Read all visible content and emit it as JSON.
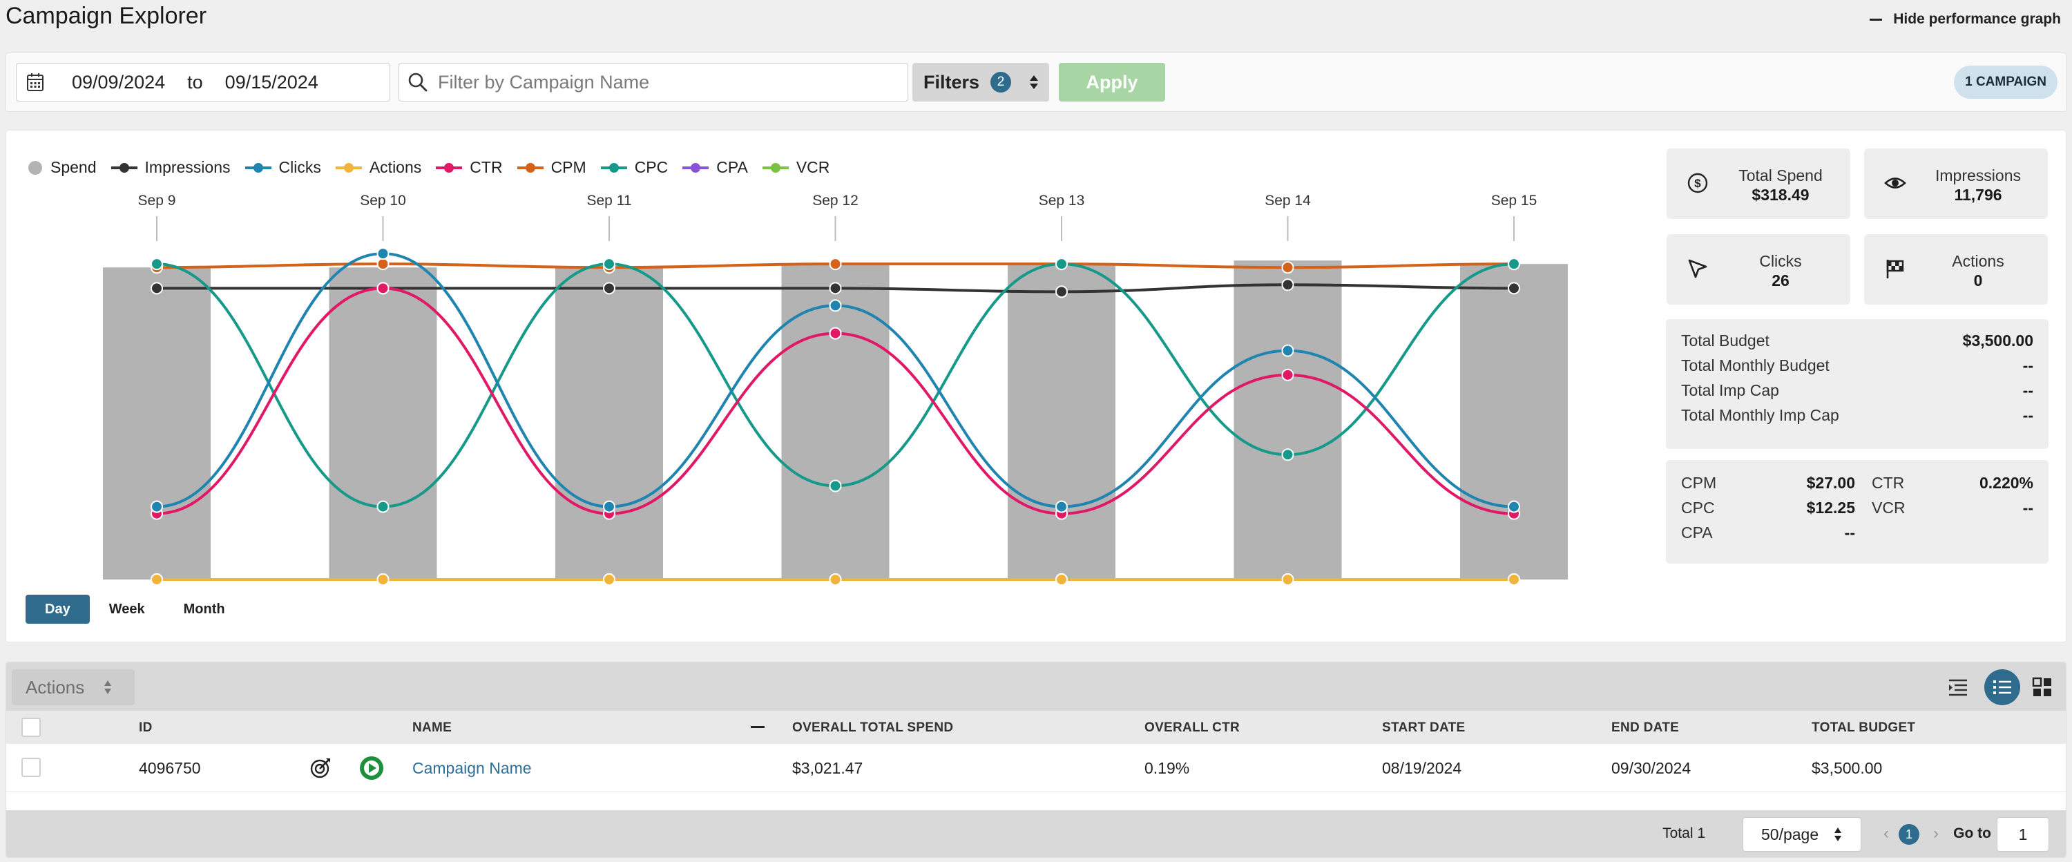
{
  "header": {
    "title": "Campaign Explorer",
    "hide_graph_label": "Hide performance graph"
  },
  "filter_bar": {
    "start_date": "09/09/2024",
    "to_label": "to",
    "end_date": "09/15/2024",
    "search_placeholder": "Filter by Campaign Name",
    "filters_label": "Filters",
    "filters_count": "2",
    "apply_label": "Apply",
    "campaign_count_label": "1 CAMPAIGN"
  },
  "chart_data": {
    "type": "line",
    "x": [
      "Sep 9",
      "Sep 10",
      "Sep 11",
      "Sep 12",
      "Sep 13",
      "Sep 14",
      "Sep 15"
    ],
    "y_normalized": true,
    "series": [
      {
        "name": "Spend",
        "render": "bar",
        "color": "#b3b3b3",
        "values": [
          0.9,
          0.9,
          0.9,
          0.91,
          0.91,
          0.92,
          0.91
        ]
      },
      {
        "name": "Impressions",
        "color": "#333333",
        "values": [
          0.84,
          0.84,
          0.84,
          0.84,
          0.83,
          0.85,
          0.84
        ]
      },
      {
        "name": "Clicks",
        "color": "#1f84b0",
        "values": [
          0.21,
          0.94,
          0.21,
          0.79,
          0.21,
          0.66,
          0.21
        ]
      },
      {
        "name": "Actions",
        "color": "#f0b43c",
        "values": [
          0,
          0,
          0,
          0,
          0,
          0,
          0
        ]
      },
      {
        "name": "CTR",
        "color": "#e01865",
        "values": [
          0.19,
          0.84,
          0.19,
          0.71,
          0.19,
          0.59,
          0.19
        ]
      },
      {
        "name": "CPM",
        "color": "#d4621a",
        "values": [
          0.9,
          0.91,
          0.9,
          0.91,
          0.91,
          0.9,
          0.91
        ]
      },
      {
        "name": "CPC",
        "color": "#17998a",
        "values": [
          0.91,
          0.21,
          0.91,
          0.27,
          0.91,
          0.36,
          0.91
        ]
      },
      {
        "name": "CPA",
        "color": "#8a52d8",
        "values": [
          0,
          0,
          0,
          0,
          0,
          0,
          0
        ]
      },
      {
        "name": "VCR",
        "color": "#7cc242",
        "values": [
          0,
          0,
          0,
          0,
          0,
          0,
          0
        ]
      }
    ],
    "grid": false,
    "legend_position": "top-left"
  },
  "range_tabs": [
    {
      "label": "Day",
      "active": true
    },
    {
      "label": "Week",
      "active": false
    },
    {
      "label": "Month",
      "active": false
    }
  ],
  "kpis": {
    "total_spend": {
      "label": "Total Spend",
      "value": "$318.49",
      "icon": "dollar-icon"
    },
    "impressions": {
      "label": "Impressions",
      "value": "11,796",
      "icon": "eye-icon"
    },
    "clicks": {
      "label": "Clicks",
      "value": "26",
      "icon": "cursor-icon"
    },
    "actions": {
      "label": "Actions",
      "value": "0",
      "icon": "flag-icon"
    }
  },
  "budget": [
    {
      "label": "Total Budget",
      "value": "$3,500.00"
    },
    {
      "label": "Total Monthly Budget",
      "value": "--"
    },
    {
      "label": "Total Imp Cap",
      "value": "--"
    },
    {
      "label": "Total Monthly Imp Cap",
      "value": "--"
    }
  ],
  "metrics": {
    "cpm": {
      "label": "CPM",
      "value": "$27.00"
    },
    "cpc": {
      "label": "CPC",
      "value": "$12.25"
    },
    "cpa": {
      "label": "CPA",
      "value": "--"
    },
    "ctr": {
      "label": "CTR",
      "value": "0.220%"
    },
    "vcr": {
      "label": "VCR",
      "value": "--"
    }
  },
  "table": {
    "actions_label": "Actions",
    "columns": {
      "id": "ID",
      "name": "NAME",
      "spend": "OVERALL TOTAL SPEND",
      "ctr": "OVERALL CTR",
      "start": "START DATE",
      "end": "END DATE",
      "budget": "TOTAL BUDGET"
    },
    "rows": [
      {
        "id": "4096750",
        "name": "Campaign Name",
        "spend": "$3,021.47",
        "ctr": "0.19%",
        "start": "08/19/2024",
        "end": "09/30/2024",
        "budget": "$3,500.00"
      }
    ]
  },
  "pager": {
    "total_label": "Total 1",
    "per_page": "50/page",
    "current_page": "1",
    "goto_label": "Go to",
    "goto_value": "1"
  },
  "colors": {
    "accent": "#2f6b8c",
    "apply_disabled": "#a8d5a4",
    "status_active": "#1e8f3a",
    "link": "#2b6f99"
  }
}
